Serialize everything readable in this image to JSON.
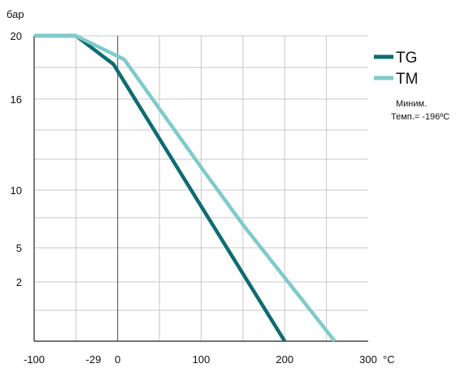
{
  "chart_data": {
    "type": "line",
    "ylabel": "бар",
    "xlabel": "°C",
    "x_tick_labels": [
      {
        "value": -100,
        "label": "-100"
      },
      {
        "value": -29,
        "label": "-29"
      },
      {
        "value": 0,
        "label": "0"
      },
      {
        "value": 100,
        "label": "100"
      },
      {
        "value": 200,
        "label": "200"
      },
      {
        "value": 300,
        "label": "300"
      }
    ],
    "y_tick_labels": [
      "20",
      "16",
      "10",
      "5",
      "2"
    ],
    "y_scale": "categorical-nonlinear",
    "xlim": [
      -100,
      300
    ],
    "grid": true,
    "legend_position": "top-right",
    "series": [
      {
        "name": "TG",
        "color": "#0e6c72",
        "points": [
          {
            "x": -100,
            "y": 20
          },
          {
            "x": -50,
            "y": 20
          },
          {
            "x": -5,
            "y": 18.2
          },
          {
            "x": 100,
            "y": 8.6
          },
          {
            "x": 200,
            "y": 0
          }
        ]
      },
      {
        "name": "TM",
        "color": "#7fcacb",
        "points": [
          {
            "x": -100,
            "y": 20
          },
          {
            "x": -50,
            "y": 20
          },
          {
            "x": 8,
            "y": 18.5
          },
          {
            "x": 100,
            "y": 11.5
          },
          {
            "x": 150,
            "y": 7
          },
          {
            "x": 260,
            "y": 0
          }
        ]
      }
    ],
    "annotation": [
      "Миним.",
      "Темп.= -196ºC"
    ]
  }
}
